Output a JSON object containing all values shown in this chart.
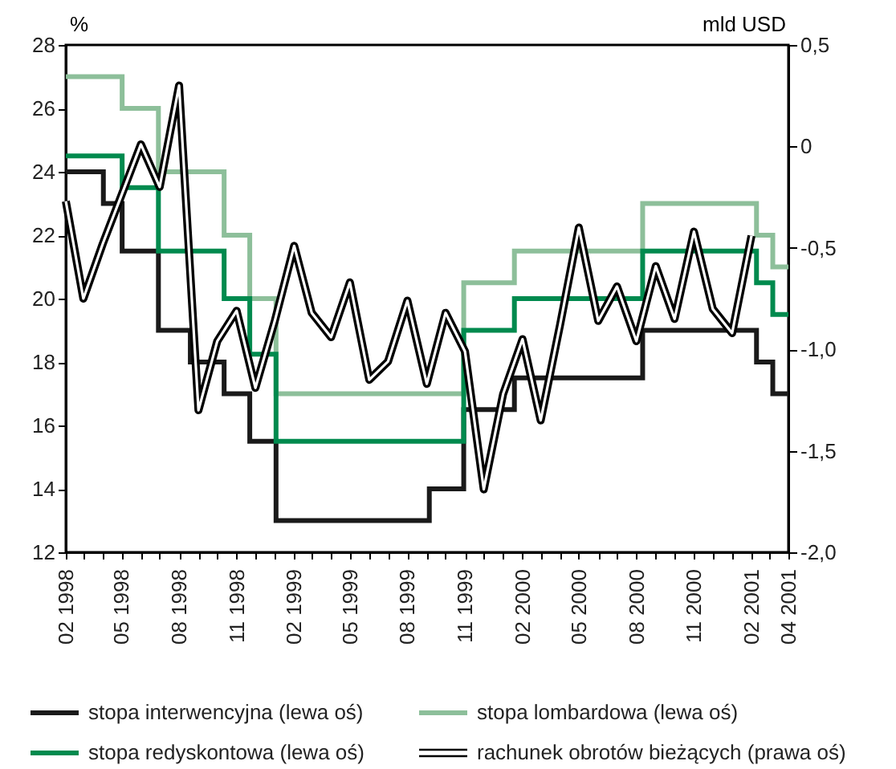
{
  "chart_data": {
    "type": "line",
    "ylabel": "%",
    "y2label": "mld USD",
    "xlim": [
      "1998-02-01",
      "2001-04-01"
    ],
    "xticks": [
      {
        "value": "1998-02-01",
        "label": "02 1998"
      },
      {
        "value": "1998-03-01",
        "label": null
      },
      {
        "value": "1998-04-01",
        "label": null
      },
      {
        "value": "1998-05-01",
        "label": "05 1998"
      },
      {
        "value": "1998-06-01",
        "label": null
      },
      {
        "value": "1998-07-01",
        "label": null
      },
      {
        "value": "1998-08-01",
        "label": "08 1998"
      },
      {
        "value": "1998-09-01",
        "label": null
      },
      {
        "value": "1998-10-01",
        "label": null
      },
      {
        "value": "1998-11-01",
        "label": "11 1998"
      },
      {
        "value": "1998-12-01",
        "label": null
      },
      {
        "value": "1999-01-01",
        "label": null
      },
      {
        "value": "1999-02-01",
        "label": "02 1999"
      },
      {
        "value": "1999-03-01",
        "label": null
      },
      {
        "value": "1999-04-01",
        "label": null
      },
      {
        "value": "1999-05-01",
        "label": "05 1999"
      },
      {
        "value": "1999-06-01",
        "label": null
      },
      {
        "value": "1999-07-01",
        "label": null
      },
      {
        "value": "1999-08-01",
        "label": "08 1999"
      },
      {
        "value": "1999-09-01",
        "label": null
      },
      {
        "value": "1999-10-01",
        "label": null
      },
      {
        "value": "1999-11-01",
        "label": "11 1999"
      },
      {
        "value": "1999-12-01",
        "label": null
      },
      {
        "value": "2000-01-01",
        "label": null
      },
      {
        "value": "2000-02-01",
        "label": "02 2000"
      },
      {
        "value": "2000-03-01",
        "label": null
      },
      {
        "value": "2000-04-01",
        "label": null
      },
      {
        "value": "2000-05-01",
        "label": "05 2000"
      },
      {
        "value": "2000-06-01",
        "label": null
      },
      {
        "value": "2000-07-01",
        "label": null
      },
      {
        "value": "2000-08-01",
        "label": "08 2000"
      },
      {
        "value": "2000-09-01",
        "label": null
      },
      {
        "value": "2000-10-01",
        "label": null
      },
      {
        "value": "2000-11-01",
        "label": "11 2000"
      },
      {
        "value": "2000-12-01",
        "label": null
      },
      {
        "value": "2001-01-01",
        "label": null
      },
      {
        "value": "2001-02-01",
        "label": "02 2001"
      },
      {
        "value": "2001-03-01",
        "label": null
      },
      {
        "value": "2001-04-01",
        "label": "04 2001"
      }
    ],
    "ylim": [
      12,
      28
    ],
    "yticks": [
      12,
      14,
      16,
      18,
      20,
      22,
      24,
      26,
      28
    ],
    "y2lim": [
      -2.0,
      0.5
    ],
    "y2ticks": [
      {
        "value": -2.0,
        "label": "-2,0"
      },
      {
        "value": -1.5,
        "label": "-1,5"
      },
      {
        "value": -1.0,
        "label": "-1,0"
      },
      {
        "value": -0.5,
        "label": "-0,5"
      },
      {
        "value": 0,
        "label": "0"
      },
      {
        "value": 0.5,
        "label": "0,5"
      }
    ],
    "grid": false,
    "legend": "bottom",
    "marker": "none",
    "series": [
      {
        "name": "stopa interwencyjna (lewa oś)",
        "type": "step",
        "color": "#1a1a1a",
        "x": [
          "1998-02-01",
          "1998-04-02",
          "1998-05-02",
          "1998-06-29",
          "1998-08-19",
          "1998-10-12",
          "1998-11-22",
          "1999-01-03",
          "1999-09-05",
          "1999-10-30",
          "2000-01-19",
          "2000-08-11",
          "2001-02-09",
          "2001-03-07",
          "2001-04-01"
        ],
        "values": [
          24,
          23,
          21.5,
          19,
          18,
          17,
          15.5,
          13,
          14,
          16.5,
          17.5,
          19,
          18,
          17,
          17
        ]
      },
      {
        "name": "stopa lombardowa (lewa oś)",
        "type": "step",
        "color": "#8dbf9a",
        "x": [
          "1998-02-01",
          "1998-05-02",
          "1998-06-29",
          "1998-10-12",
          "1998-11-22",
          "1999-01-03",
          "1999-10-30",
          "2000-01-19",
          "2000-08-11",
          "2001-02-09",
          "2001-03-07",
          "2001-04-01"
        ],
        "values": [
          27,
          26,
          24,
          22,
          20,
          17,
          20.5,
          21.5,
          23,
          22,
          21,
          21
        ]
      },
      {
        "name": "stopa redyskontowa (lewa oś)",
        "type": "step",
        "color": "#008a4e",
        "x": [
          "1998-02-01",
          "1998-05-02",
          "1998-06-29",
          "1998-10-12",
          "1998-11-22",
          "1999-01-03",
          "1999-10-30",
          "2000-01-19",
          "2000-08-11",
          "2001-02-09",
          "2001-03-07",
          "2001-04-01"
        ],
        "values": [
          24.5,
          23.5,
          21.5,
          20,
          18.25,
          15.5,
          19,
          20,
          21.5,
          20.5,
          19.5,
          19.5
        ]
      },
      {
        "name": "rachunek obrotów bieżących (prawa oś)",
        "axis": "y2",
        "color": "#000000",
        "x": [
          "1998-02",
          "1998-03",
          "1998-04",
          "1998-05",
          "1998-06",
          "1998-07",
          "1998-08",
          "1998-09",
          "1998-10",
          "1998-11",
          "1998-12",
          "1999-01",
          "1999-02",
          "1999-03",
          "1999-04",
          "1999-05",
          "1999-06",
          "1999-07",
          "1999-08",
          "1999-09",
          "1999-10",
          "1999-11",
          "1999-12",
          "2000-01",
          "2000-02",
          "2000-03",
          "2000-04",
          "2000-05",
          "2000-06",
          "2000-07",
          "2000-08",
          "2000-09",
          "2000-10",
          "2000-11",
          "2000-12",
          "2001-01",
          "2001-02"
        ],
        "values": [
          -0.27,
          -0.75,
          -0.48,
          -0.24,
          0.01,
          -0.2,
          0.3,
          -1.3,
          -0.96,
          -0.81,
          -1.19,
          -0.86,
          -0.49,
          -0.82,
          -0.94,
          -0.67,
          -1.15,
          -1.06,
          -0.76,
          -1.17,
          -0.82,
          -1.01,
          -1.69,
          -1.22,
          -0.95,
          -1.35,
          -0.88,
          -0.4,
          -0.86,
          -0.69,
          -0.96,
          -0.59,
          -0.85,
          -0.42,
          -0.8,
          -0.92,
          -0.44
        ]
      }
    ]
  }
}
